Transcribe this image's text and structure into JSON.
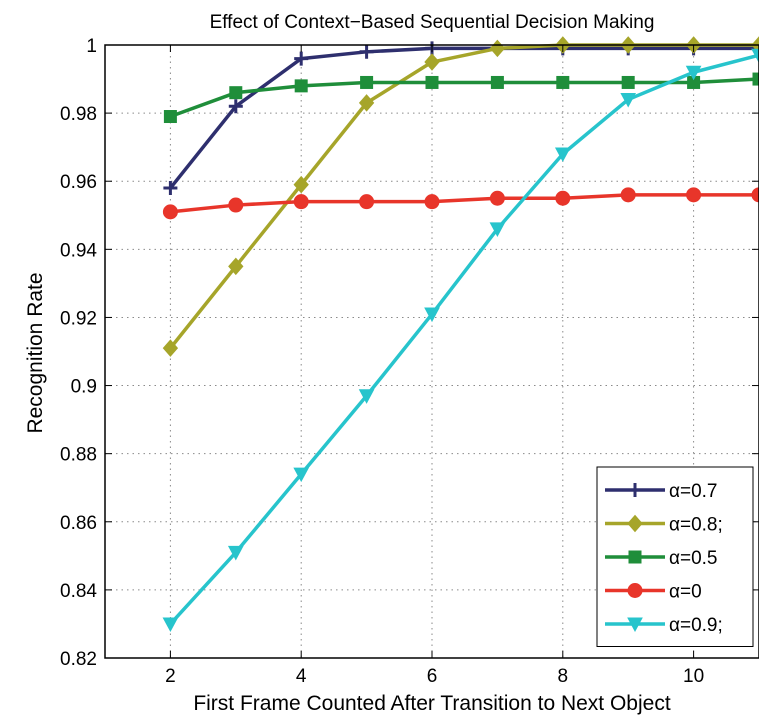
{
  "chart_data": {
    "type": "line",
    "title": "Effect of Context−Based Sequential Decision Making",
    "xlabel": "First Frame Counted After Transition to Next Object",
    "ylabel": "Recognition Rate",
    "xlim": [
      1,
      11
    ],
    "ylim": [
      0.82,
      1.0
    ],
    "xticks": [
      2,
      4,
      6,
      8,
      10
    ],
    "yticks": [
      0.82,
      0.84,
      0.86,
      0.88,
      0.9,
      0.92,
      0.94,
      0.96,
      0.98,
      1
    ],
    "xtick_labels": [
      "2",
      "4",
      "6",
      "8",
      "10"
    ],
    "ytick_labels": [
      "0.82",
      "0.84",
      "0.86",
      "0.88",
      "0.9",
      "0.92",
      "0.94",
      "0.96",
      "0.98",
      "1"
    ],
    "grid": true,
    "legend_position": "bottom-right",
    "x": [
      2,
      3,
      4,
      5,
      6,
      7,
      8,
      9,
      10,
      11
    ],
    "series": [
      {
        "name": "α=0.7",
        "color": "#2e2f6e",
        "marker": "plus",
        "values": [
          0.958,
          0.982,
          0.996,
          0.998,
          0.999,
          0.999,
          0.999,
          0.999,
          0.999,
          0.999
        ]
      },
      {
        "name": "α=0.8;",
        "color": "#a6a52a",
        "marker": "diamond",
        "values": [
          0.911,
          0.935,
          0.959,
          0.983,
          0.995,
          0.999,
          1.0,
          1.0,
          1.0,
          1.0
        ]
      },
      {
        "name": "α=0.5",
        "color": "#1f8e3a",
        "marker": "square",
        "values": [
          0.979,
          0.986,
          0.988,
          0.989,
          0.989,
          0.989,
          0.989,
          0.989,
          0.989,
          0.99
        ]
      },
      {
        "name": "α=0",
        "color": "#e8352a",
        "marker": "circle",
        "values": [
          0.951,
          0.953,
          0.954,
          0.954,
          0.954,
          0.955,
          0.955,
          0.956,
          0.956,
          0.956
        ]
      },
      {
        "name": "α=0.9;",
        "color": "#27c4cc",
        "marker": "triangle-down",
        "values": [
          0.83,
          0.851,
          0.874,
          0.897,
          0.921,
          0.946,
          0.968,
          0.984,
          0.992,
          0.997
        ]
      }
    ]
  }
}
